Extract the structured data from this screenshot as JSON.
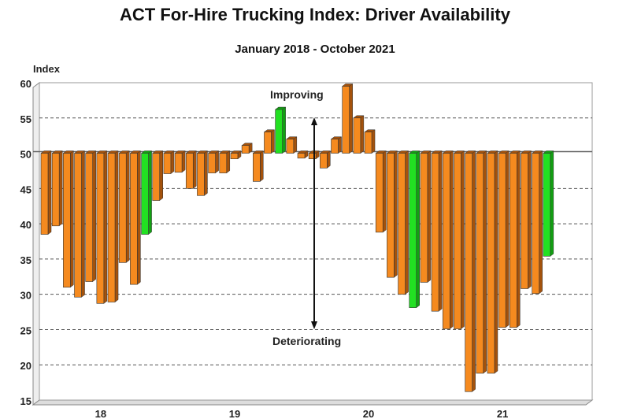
{
  "chart_data": {
    "type": "bar",
    "title": "ACT For-Hire Trucking Index: Driver Availability",
    "subtitle": "January 2018 - October 2021",
    "ylabel": "Index",
    "xlabel": "",
    "ylim": [
      15,
      60
    ],
    "yticks": [
      15,
      20,
      25,
      30,
      35,
      40,
      45,
      50,
      55,
      60
    ],
    "baseline": 50,
    "grid": true,
    "x_tick_labels": [
      {
        "label": "18",
        "index": 5
      },
      {
        "label": "19",
        "index": 17
      },
      {
        "label": "20",
        "index": 29
      },
      {
        "label": "21",
        "index": 41
      }
    ],
    "categories": [
      "Jan 2018",
      "Feb 2018",
      "Mar 2018",
      "Apr 2018",
      "May 2018",
      "Jun 2018",
      "Jul 2018",
      "Aug 2018",
      "Sep 2018",
      "Oct 2018",
      "Nov 2018",
      "Dec 2018",
      "Jan 2019",
      "Feb 2019",
      "Mar 2019",
      "Apr 2019",
      "May 2019",
      "Jun 2019",
      "Jul 2019",
      "Aug 2019",
      "Sep 2019",
      "Oct 2019",
      "Nov 2019",
      "Dec 2019",
      "Jan 2020",
      "Feb 2020",
      "Mar 2020",
      "Apr 2020",
      "May 2020",
      "Jun 2020",
      "Jul 2020",
      "Aug 2020",
      "Sep 2020",
      "Oct 2020",
      "Nov 2020",
      "Dec 2020",
      "Jan 2021",
      "Feb 2021",
      "Mar 2021",
      "Apr 2021",
      "May 2021",
      "Jun 2021",
      "Jul 2021",
      "Aug 2021",
      "Sep 2021",
      "Oct 2021"
    ],
    "values": [
      38.5,
      39.7,
      31.0,
      29.6,
      31.8,
      28.7,
      28.9,
      34.5,
      31.4,
      38.5,
      43.3,
      47.1,
      47.3,
      45.0,
      44.0,
      47.2,
      47.2,
      49.2,
      51.1,
      46.0,
      53.0,
      56.2,
      52.0,
      49.3,
      49.2,
      47.9,
      52.0,
      59.5,
      55.0,
      53.0,
      38.8,
      32.4,
      30.0,
      28.1,
      31.7,
      27.6,
      25.1,
      25.1,
      16.2,
      18.8,
      18.8,
      25.3,
      25.3,
      30.8,
      30.1,
      35.4
    ],
    "highlight_indices": [
      9,
      21,
      33,
      45
    ],
    "colors": {
      "bar": "#f58a1f",
      "bar_side": "#a4520c",
      "highlight": "#22e022",
      "highlight_side": "#12a012",
      "grid": "#555555"
    },
    "annotations": {
      "up": "Improving",
      "down": "Deteriorating"
    }
  }
}
